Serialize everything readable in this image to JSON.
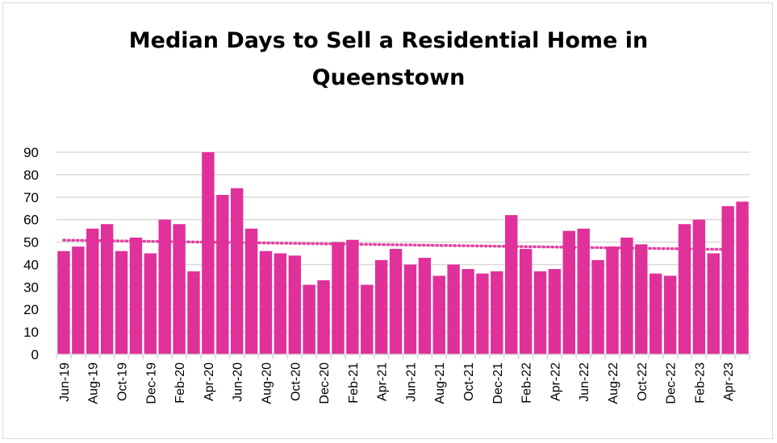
{
  "chart_data": {
    "type": "bar",
    "title_lines": [
      "Median Days to Sell a Residential Home in",
      "Queenstown"
    ],
    "xlabel": "",
    "ylabel": "",
    "ylim": [
      0,
      90
    ],
    "yticks": [
      0,
      10,
      20,
      30,
      40,
      50,
      60,
      70,
      80,
      90
    ],
    "grid": true,
    "legend": "none",
    "bar_color": "#e0309a",
    "trendline": {
      "type": "linear",
      "style": "dotted",
      "color": "#e0309a"
    },
    "categories": [
      "Jun-19",
      "Jul-19",
      "Aug-19",
      "Sep-19",
      "Oct-19",
      "Nov-19",
      "Dec-19",
      "Jan-20",
      "Feb-20",
      "Mar-20",
      "Apr-20",
      "May-20",
      "Jun-20",
      "Jul-20",
      "Aug-20",
      "Sep-20",
      "Oct-20",
      "Nov-20",
      "Dec-20",
      "Jan-21",
      "Feb-21",
      "Mar-21",
      "Apr-21",
      "May-21",
      "Jun-21",
      "Jul-21",
      "Aug-21",
      "Sep-21",
      "Oct-21",
      "Nov-21",
      "Dec-21",
      "Jan-22",
      "Feb-22",
      "Mar-22",
      "Apr-22",
      "May-22",
      "Jun-22",
      "Jul-22",
      "Aug-22",
      "Sep-22",
      "Oct-22",
      "Nov-22",
      "Dec-22",
      "Jan-23",
      "Feb-23",
      "Mar-23",
      "Apr-23",
      "May-23"
    ],
    "tick_labels": [
      "Jun-19",
      "Aug-19",
      "Oct-19",
      "Dec-19",
      "Feb-20",
      "Apr-20",
      "Jun-20",
      "Aug-20",
      "Oct-20",
      "Dec-20",
      "Feb-21",
      "Apr-21",
      "Jun-21",
      "Aug-21",
      "Oct-21",
      "Dec-21",
      "Feb-22",
      "Apr-22",
      "Jun-22",
      "Aug-22",
      "Oct-22",
      "Dec-22",
      "Feb-23",
      "Apr-23"
    ],
    "values": [
      46,
      48,
      56,
      58,
      46,
      52,
      45,
      60,
      58,
      37,
      90,
      71,
      74,
      56,
      46,
      45,
      44,
      31,
      33,
      50,
      51,
      31,
      42,
      47,
      40,
      43,
      35,
      40,
      38,
      36,
      37,
      62,
      47,
      37,
      38,
      55,
      56,
      42,
      48,
      52,
      49,
      36,
      35,
      58,
      60,
      45,
      66,
      68
    ]
  }
}
